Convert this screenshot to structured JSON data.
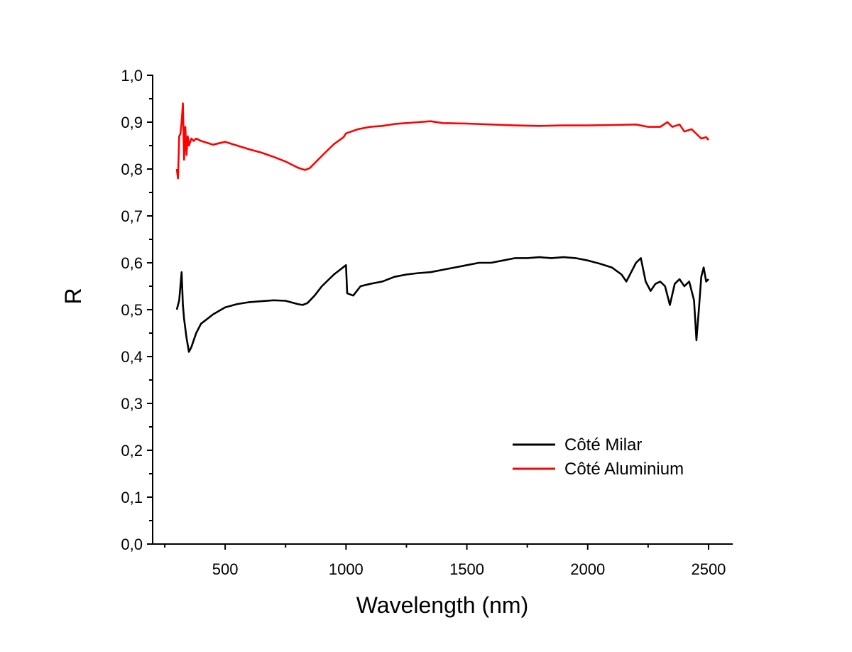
{
  "chart_data": {
    "type": "line",
    "title": "",
    "xlabel": "Wavelength (nm)",
    "ylabel": "R",
    "xlim": [
      200,
      2600
    ],
    "ylim": [
      0.0,
      1.0
    ],
    "x_ticks": [
      500,
      1000,
      1500,
      2000,
      2500
    ],
    "x_tick_labels": [
      "500",
      "1000",
      "1500",
      "2000",
      "2500"
    ],
    "y_ticks": [
      0.0,
      0.1,
      0.2,
      0.3,
      0.4,
      0.5,
      0.6,
      0.7,
      0.8,
      0.9,
      1.0
    ],
    "y_tick_labels": [
      "0,0",
      "0,1",
      "0,2",
      "0,3",
      "0,4",
      "0,5",
      "0,6",
      "0,7",
      "0,8",
      "0,9",
      "1,0"
    ],
    "grid": false,
    "legend_position": "bottom-right",
    "series": [
      {
        "name": "Côté Milar",
        "color": "#000000",
        "x": [
          300,
          310,
          320,
          325,
          330,
          335,
          340,
          350,
          360,
          380,
          400,
          450,
          500,
          550,
          600,
          650,
          700,
          750,
          800,
          820,
          840,
          870,
          900,
          950,
          1000,
          1005,
          1030,
          1060,
          1100,
          1150,
          1200,
          1250,
          1300,
          1350,
          1400,
          1450,
          1500,
          1550,
          1600,
          1650,
          1700,
          1750,
          1800,
          1850,
          1900,
          1950,
          2000,
          2050,
          2100,
          2140,
          2160,
          2200,
          2220,
          2240,
          2260,
          2280,
          2300,
          2320,
          2340,
          2360,
          2380,
          2400,
          2420,
          2440,
          2450,
          2460,
          2470,
          2480,
          2490,
          2500
        ],
        "y": [
          0.5,
          0.52,
          0.58,
          0.51,
          0.48,
          0.46,
          0.44,
          0.41,
          0.42,
          0.45,
          0.47,
          0.49,
          0.505,
          0.512,
          0.516,
          0.518,
          0.52,
          0.519,
          0.512,
          0.51,
          0.514,
          0.53,
          0.55,
          0.575,
          0.595,
          0.535,
          0.53,
          0.55,
          0.555,
          0.56,
          0.57,
          0.575,
          0.578,
          0.58,
          0.585,
          0.59,
          0.595,
          0.6,
          0.6,
          0.605,
          0.61,
          0.61,
          0.612,
          0.61,
          0.612,
          0.61,
          0.605,
          0.598,
          0.59,
          0.575,
          0.56,
          0.6,
          0.61,
          0.56,
          0.54,
          0.555,
          0.56,
          0.55,
          0.51,
          0.555,
          0.565,
          0.55,
          0.56,
          0.52,
          0.435,
          0.5,
          0.57,
          0.59,
          0.56,
          0.565
        ]
      },
      {
        "name": "Côté Aluminium",
        "color": "#ff0000",
        "x": [
          300,
          305,
          310,
          315,
          320,
          325,
          330,
          335,
          340,
          345,
          350,
          360,
          370,
          380,
          400,
          450,
          500,
          550,
          600,
          650,
          700,
          750,
          800,
          830,
          850,
          900,
          950,
          990,
          1000,
          1050,
          1100,
          1150,
          1200,
          1300,
          1350,
          1400,
          1500,
          1600,
          1700,
          1800,
          1900,
          2000,
          2100,
          2200,
          2250,
          2300,
          2330,
          2350,
          2380,
          2400,
          2430,
          2450,
          2470,
          2490,
          2500
        ],
        "y": [
          0.8,
          0.78,
          0.87,
          0.875,
          0.9,
          0.94,
          0.82,
          0.89,
          0.83,
          0.87,
          0.85,
          0.865,
          0.86,
          0.865,
          0.86,
          0.852,
          0.858,
          0.85,
          0.842,
          0.835,
          0.826,
          0.816,
          0.803,
          0.798,
          0.802,
          0.828,
          0.853,
          0.868,
          0.876,
          0.885,
          0.89,
          0.892,
          0.896,
          0.9,
          0.902,
          0.898,
          0.897,
          0.895,
          0.893,
          0.892,
          0.893,
          0.893,
          0.894,
          0.895,
          0.89,
          0.89,
          0.9,
          0.89,
          0.895,
          0.88,
          0.885,
          0.875,
          0.865,
          0.868,
          0.862
        ]
      }
    ]
  }
}
